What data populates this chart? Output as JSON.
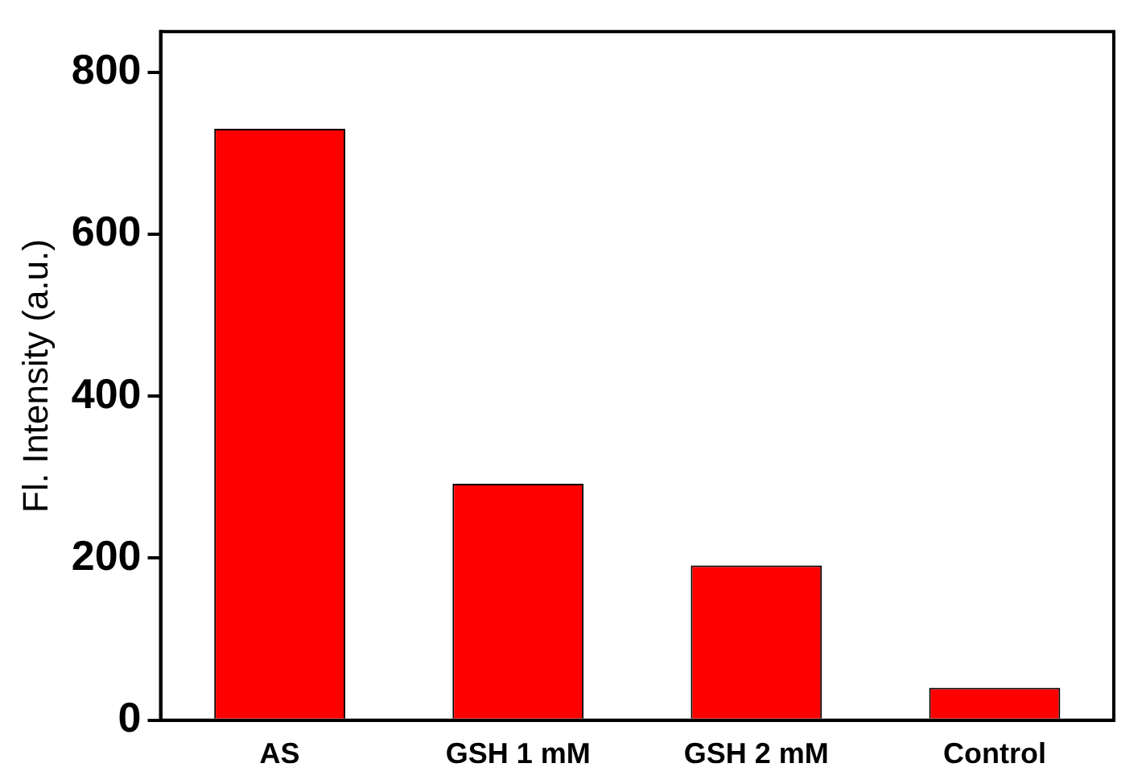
{
  "chart_data": {
    "type": "bar",
    "ylabel": "Fl. Intensity (a.u.)",
    "categories": [
      "AS",
      "GSH 1 mM",
      "GSH 2 mM",
      "Control"
    ],
    "values": [
      730,
      292,
      191,
      40
    ],
    "color": "#ff0000",
    "ylim": [
      0,
      850
    ],
    "yticks": [
      0,
      200,
      400,
      600,
      800
    ],
    "grid": false,
    "legend": false
  }
}
